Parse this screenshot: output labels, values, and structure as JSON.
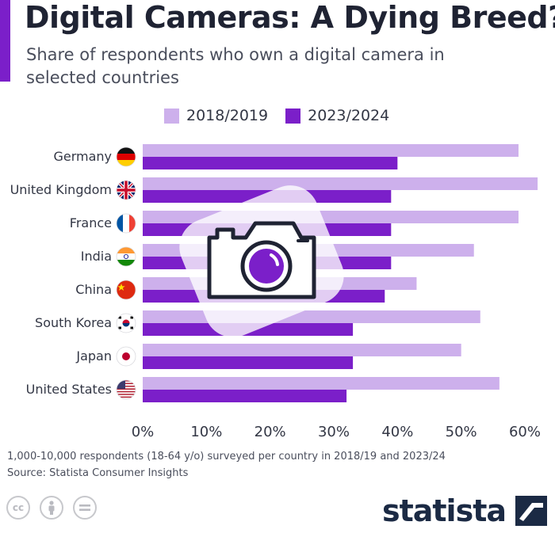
{
  "title": "Digital Cameras: A Dying Breed?",
  "subtitle": "Share of respondents who own a digital camera in selected countries",
  "footnote": "1,000-10,000 respondents (18-64 y/o) surveyed per country in 2018/19 and 2023/24",
  "source": "Source: Statista Consumer Insights",
  "brand": "statista",
  "colors": {
    "accent": "#7b1fc9",
    "series_2018": "#cdb0ec",
    "series_2023": "#7b1fc9"
  },
  "icons": [
    "creative-commons-icon",
    "attribution-icon",
    "no-derivatives-icon",
    "statista-logo-icon",
    "camera-icon"
  ],
  "chart_data": {
    "type": "bar",
    "orientation": "horizontal",
    "categories": [
      "Germany",
      "United Kingdom",
      "France",
      "India",
      "China",
      "South Korea",
      "Japan",
      "United States"
    ],
    "series": [
      {
        "name": "2018/2019",
        "color": "#cdb0ec",
        "values": [
          59,
          62,
          59,
          52,
          43,
          53,
          50,
          56
        ]
      },
      {
        "name": "2023/2024",
        "color": "#7b1fc9",
        "values": [
          40,
          39,
          39,
          39,
          38,
          33,
          33,
          32
        ]
      }
    ],
    "xlim": [
      0,
      60
    ],
    "xticks": [
      0,
      10,
      20,
      30,
      40,
      50,
      60
    ],
    "tick_labels": [
      "0%",
      "10%",
      "20%",
      "30%",
      "40%",
      "50%",
      "60%"
    ],
    "legend_position": "top",
    "grid": false
  }
}
